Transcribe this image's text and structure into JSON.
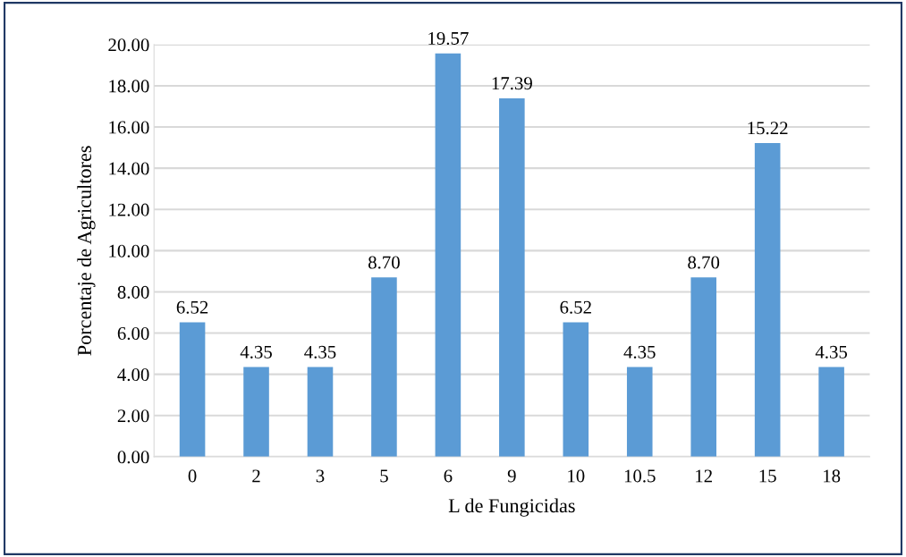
{
  "chart_data": {
    "type": "bar",
    "xlabel": "L de Fungicidas",
    "ylabel": "Porcentaje de Agricultores",
    "categories": [
      "0",
      "2",
      "3",
      "5",
      "6",
      "9",
      "10",
      "10.5",
      "12",
      "15",
      "18"
    ],
    "values": [
      6.52,
      4.35,
      4.35,
      8.7,
      19.57,
      17.39,
      6.52,
      4.35,
      8.7,
      15.22,
      4.35
    ],
    "value_labels": [
      "6.52",
      "4.35",
      "4.35",
      "8.70",
      "19.57",
      "17.39",
      "6.52",
      "4.35",
      "8.70",
      "15.22",
      "4.35"
    ],
    "color": "#5b9bd5",
    "ylim": [
      0,
      20
    ],
    "yticks": [
      {
        "value": 0,
        "label": "0.00"
      },
      {
        "value": 2,
        "label": "2.00"
      },
      {
        "value": 4,
        "label": "4.00"
      },
      {
        "value": 6,
        "label": "6.00"
      },
      {
        "value": 8,
        "label": "8.00"
      },
      {
        "value": 10,
        "label": "10.00"
      },
      {
        "value": 12,
        "label": "12.00"
      },
      {
        "value": 14,
        "label": "14.00"
      },
      {
        "value": 16,
        "label": "16.00"
      },
      {
        "value": 18,
        "label": "18.00"
      },
      {
        "value": 20,
        "label": "20.00"
      }
    ],
    "grid": "y",
    "legend": false
  }
}
